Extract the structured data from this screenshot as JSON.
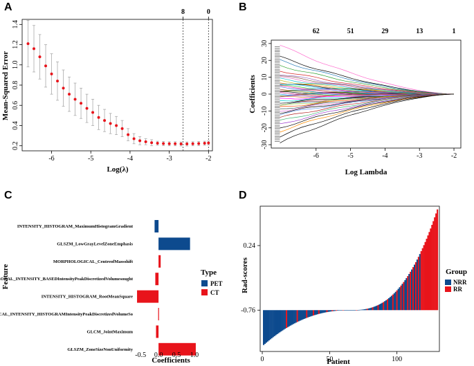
{
  "panels": {
    "a": {
      "label": "A"
    },
    "b": {
      "label": "B"
    },
    "c": {
      "label": "C"
    },
    "d": {
      "label": "D"
    }
  },
  "chart_data": [
    {
      "id": "A",
      "type": "line",
      "title": "",
      "xlabel": "Log(λ)",
      "ylabel": "Mean-Squared Error",
      "xlim": [
        -6.75,
        -1.9
      ],
      "ylim": [
        0.15,
        1.45
      ],
      "xticks": [
        -6,
        -5,
        -4,
        -3,
        -2
      ],
      "yticks": [
        0.2,
        0.4,
        0.6,
        0.8,
        1.0,
        1.2,
        1.4
      ],
      "top_ticks": [
        {
          "x": -2.65,
          "label": "8"
        },
        {
          "x": -2.0,
          "label": "0"
        }
      ],
      "vlines": [
        -2.65,
        -2.0
      ],
      "x": [
        -6.6,
        -6.45,
        -6.3,
        -6.15,
        -6.0,
        -5.85,
        -5.7,
        -5.55,
        -5.4,
        -5.25,
        -5.1,
        -4.95,
        -4.8,
        -4.65,
        -4.5,
        -4.35,
        -4.2,
        -4.05,
        -3.9,
        -3.75,
        -3.6,
        -3.45,
        -3.3,
        -3.15,
        -3.0,
        -2.85,
        -2.7,
        -2.55,
        -2.4,
        -2.25,
        -2.1,
        -2.0
      ],
      "y": [
        1.21,
        1.16,
        1.08,
        0.99,
        0.91,
        0.84,
        0.77,
        0.71,
        0.66,
        0.62,
        0.57,
        0.53,
        0.48,
        0.45,
        0.42,
        0.4,
        0.37,
        0.31,
        0.27,
        0.25,
        0.24,
        0.23,
        0.225,
        0.222,
        0.22,
        0.22,
        0.218,
        0.218,
        0.22,
        0.222,
        0.225,
        0.228
      ],
      "err": [
        0.23,
        0.23,
        0.22,
        0.21,
        0.2,
        0.19,
        0.18,
        0.17,
        0.16,
        0.15,
        0.14,
        0.13,
        0.12,
        0.11,
        0.1,
        0.09,
        0.08,
        0.06,
        0.05,
        0.04,
        0.03,
        0.03,
        0.02,
        0.02,
        0.02,
        0.02,
        0.02,
        0.02,
        0.02,
        0.02,
        0.02,
        0.02
      ]
    },
    {
      "id": "B",
      "type": "line",
      "title": "",
      "xlabel": "Log Lambda",
      "ylabel": "Coefficients",
      "xlim": [
        -7.3,
        -1.8
      ],
      "ylim": [
        -32,
        32
      ],
      "xticks": [
        -6,
        -5,
        -4,
        -3,
        -2
      ],
      "yticks": [
        -30,
        -20,
        -10,
        0,
        10,
        20,
        30
      ],
      "top_ticks": [
        {
          "x": -6,
          "label": "62"
        },
        {
          "x": -5,
          "label": "51"
        },
        {
          "x": -4,
          "label": "29"
        },
        {
          "x": -3,
          "label": "13"
        },
        {
          "x": -2,
          "label": "1"
        }
      ],
      "paths_start": [
        29,
        22,
        20,
        17,
        14,
        12,
        11,
        10,
        9,
        8,
        7,
        6.5,
        6,
        5,
        4.5,
        4,
        3,
        2.5,
        2,
        1.5,
        1,
        0.5,
        0,
        -0.5,
        -1,
        -1.5,
        -2,
        -3,
        -4,
        -5,
        -6,
        -6.5,
        -7,
        -8,
        -9,
        -10,
        -11,
        -12,
        -14,
        -16,
        -18,
        -20,
        -22,
        -25,
        -29
      ],
      "paths_colors": [
        "#ff66cc",
        "#000000",
        "#1f77b4",
        "#2ca02c",
        "#d62728",
        "#9467bd",
        "#8c564b",
        "#e377c2",
        "#17becf",
        "#bcbd22",
        "#ff7f0e",
        "#000000",
        "#00bfff",
        "#32cd32",
        "#ff1493",
        "#4169e1",
        "#a0522d",
        "#ff69b4",
        "#008080",
        "#808000",
        "#000000",
        "#c71585",
        "#1e90ff",
        "#228b22",
        "#dc143c",
        "#6a5acd",
        "#d2691e",
        "#ff00ff",
        "#00ced1",
        "#000000",
        "#8b0000",
        "#4682b4",
        "#9acd32",
        "#ff4500",
        "#2f4f4f",
        "#da70d6",
        "#000000",
        "#6495ed",
        "#b22222",
        "#3cb371",
        "#9932cc",
        "#000000",
        "#ff8c00",
        "#000000",
        "#000000"
      ]
    },
    {
      "id": "C",
      "type": "bar",
      "orientation": "horizontal",
      "xlabel": "Coefficients",
      "ylabel": "Feature",
      "xlim": [
        -0.62,
        1.08
      ],
      "xticks": [
        -0.5,
        0.0,
        0.5,
        1.0
      ],
      "xtick_labels": [
        "-0.5",
        "0.0",
        "0.5",
        "1.0"
      ],
      "categories": [
        "INTENSITY_HISTOGRAM_MaximumHistogramGradient",
        "GLSZM_LowGrayLevelZoneEmphasis",
        "MORPHOLOGICAL_CentreofMassshift",
        "LOCAL_INTENSITY_BASEDIntensityPeakDiscretizedVolumesought",
        "INTENSITY_HISTOGRAM_RootMeanSquare",
        "LOCAL_INTENSITY_HISTOGRAMIntensityPeakDiscretizedVolumeSo",
        "GLCM_JointMaximum",
        "GLSZM_ZoneSizeNonUniformity"
      ],
      "values": [
        -0.11,
        0.88,
        0.06,
        -0.09,
        -0.6,
        -0.01,
        -0.07,
        1.04
      ],
      "types": [
        "PET",
        "PET",
        "CT",
        "CT",
        "CT",
        "CT",
        "CT",
        "CT"
      ],
      "legend": {
        "title": "Type",
        "entries": [
          {
            "name": "PET",
            "color": "#0d4a8e"
          },
          {
            "name": "CT",
            "color": "#e8141b"
          }
        ]
      }
    },
    {
      "id": "D",
      "type": "bar",
      "xlabel": "Patient",
      "ylabel": "Rad-scores",
      "baseline": -0.76,
      "ylim": [
        -1.4,
        0.85
      ],
      "yticks": [
        -0.76,
        0.24
      ],
      "ytick_labels": [
        "-0.76",
        "0.24"
      ],
      "xticks": [
        0,
        50,
        100
      ],
      "n_patients": 130,
      "score_min": -1.3,
      "score_max": 0.8,
      "rr_patients": [
        18,
        26,
        33,
        38,
        42,
        48,
        52,
        55,
        60,
        70,
        78,
        82,
        86,
        90,
        93,
        97,
        100,
        103,
        105,
        108,
        110,
        112,
        114,
        116,
        118,
        119,
        120,
        121,
        122,
        123,
        124,
        125,
        126,
        127,
        128,
        129,
        130
      ],
      "legend": {
        "title": "Group",
        "entries": [
          {
            "name": "NRR",
            "color": "#0d4a8e"
          },
          {
            "name": "RR",
            "color": "#e8141b"
          }
        ]
      }
    }
  ]
}
